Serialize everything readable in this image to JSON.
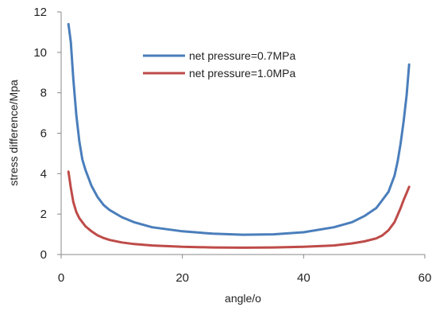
{
  "chart_data": {
    "type": "line",
    "xlabel": "angle/o",
    "ylabel": "stress difference/Mpa",
    "xlim": [
      0,
      60
    ],
    "ylim": [
      0,
      12
    ],
    "xticks": [
      0,
      20,
      40,
      60
    ],
    "yticks": [
      0,
      2,
      4,
      6,
      8,
      10,
      12
    ],
    "grid": false,
    "legend_position": "top-center",
    "series": [
      {
        "name": "net pressure=0.7MPa",
        "color": "#4a7ebb",
        "x": [
          1.2,
          1.6,
          2,
          2.5,
          3,
          3.5,
          4,
          5,
          6,
          7,
          8,
          10,
          12,
          15,
          20,
          25,
          30,
          35,
          40,
          45,
          48,
          50,
          52,
          53,
          54,
          55,
          55.5,
          56,
          56.5,
          57,
          57.4
        ],
        "y": [
          11.4,
          10.5,
          8.7,
          6.9,
          5.6,
          4.7,
          4.2,
          3.4,
          2.85,
          2.45,
          2.2,
          1.85,
          1.6,
          1.35,
          1.15,
          1.03,
          0.98,
          1.0,
          1.1,
          1.35,
          1.6,
          1.9,
          2.3,
          2.7,
          3.1,
          3.9,
          4.6,
          5.5,
          6.6,
          7.9,
          9.4
        ]
      },
      {
        "name": "net pressure=1.0MPa",
        "color": "#be4b48",
        "x": [
          1.2,
          1.6,
          2,
          2.5,
          3,
          3.5,
          4,
          5,
          6,
          7,
          8,
          10,
          12,
          15,
          20,
          25,
          30,
          35,
          40,
          45,
          48,
          50,
          52,
          53,
          54,
          55,
          55.5,
          56,
          56.5,
          57,
          57.4
        ],
        "y": [
          4.1,
          3.3,
          2.6,
          2.1,
          1.8,
          1.6,
          1.4,
          1.15,
          0.95,
          0.82,
          0.72,
          0.6,
          0.52,
          0.45,
          0.38,
          0.35,
          0.34,
          0.35,
          0.38,
          0.45,
          0.55,
          0.65,
          0.8,
          0.95,
          1.2,
          1.6,
          1.95,
          2.3,
          2.7,
          3.05,
          3.35
        ]
      }
    ]
  }
}
